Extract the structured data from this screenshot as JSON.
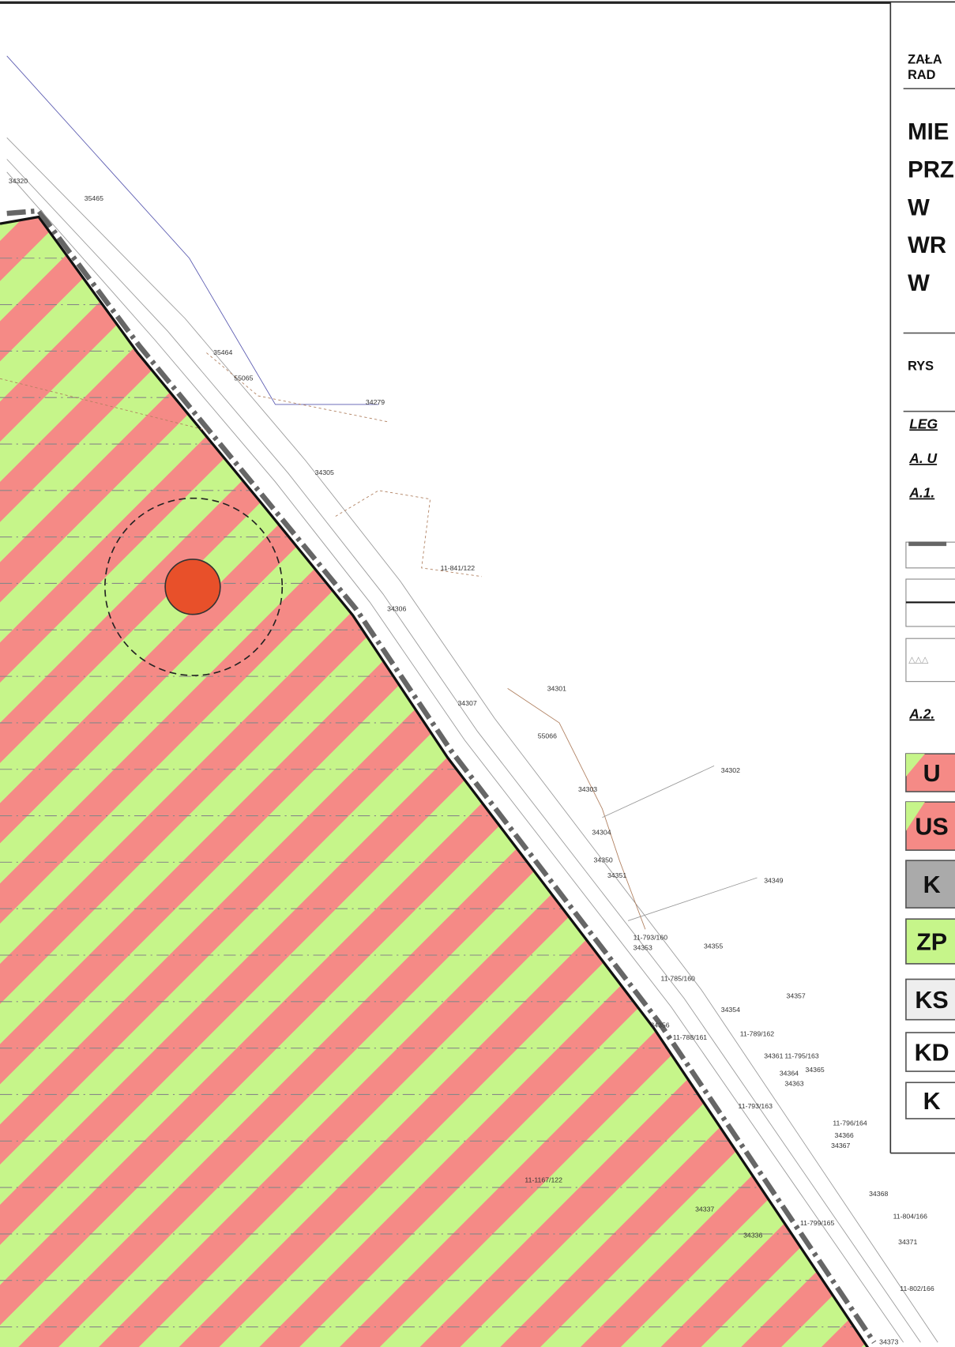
{
  "header": {
    "lines": [
      "ZAŁA",
      "RAD"
    ]
  },
  "title_lines": [
    "MIE",
    "PRZ",
    "W",
    "WR",
    "W"
  ],
  "drawing_label": "RYS",
  "legend": {
    "title": "LEG",
    "section_a": "A. U",
    "section_a1": "A.1.",
    "section_a2": "A.2.",
    "zones": [
      "U",
      "US",
      "K",
      "ZP",
      "KS",
      "KD",
      "K"
    ]
  },
  "parcels": [
    "34320",
    "35465",
    "35464",
    "55065",
    "34279",
    "34305",
    "11-841/122",
    "34306",
    "34307",
    "34301",
    "55066",
    "34302",
    "34303",
    "34304",
    "34350",
    "34351",
    "34349",
    "11-793/160",
    "34353",
    "34355",
    "11-785/160",
    "34357",
    "34354",
    "34356",
    "11-788/161",
    "11-789/162",
    "34361",
    "11-795/163",
    "34365",
    "34364",
    "34363",
    "11-793/163",
    "11-796/164",
    "34366",
    "34367",
    "11-1167/122",
    "34337",
    "34336",
    "11-799/165",
    "34368",
    "11-804/166",
    "34371",
    "11-802/166",
    "34373"
  ]
}
